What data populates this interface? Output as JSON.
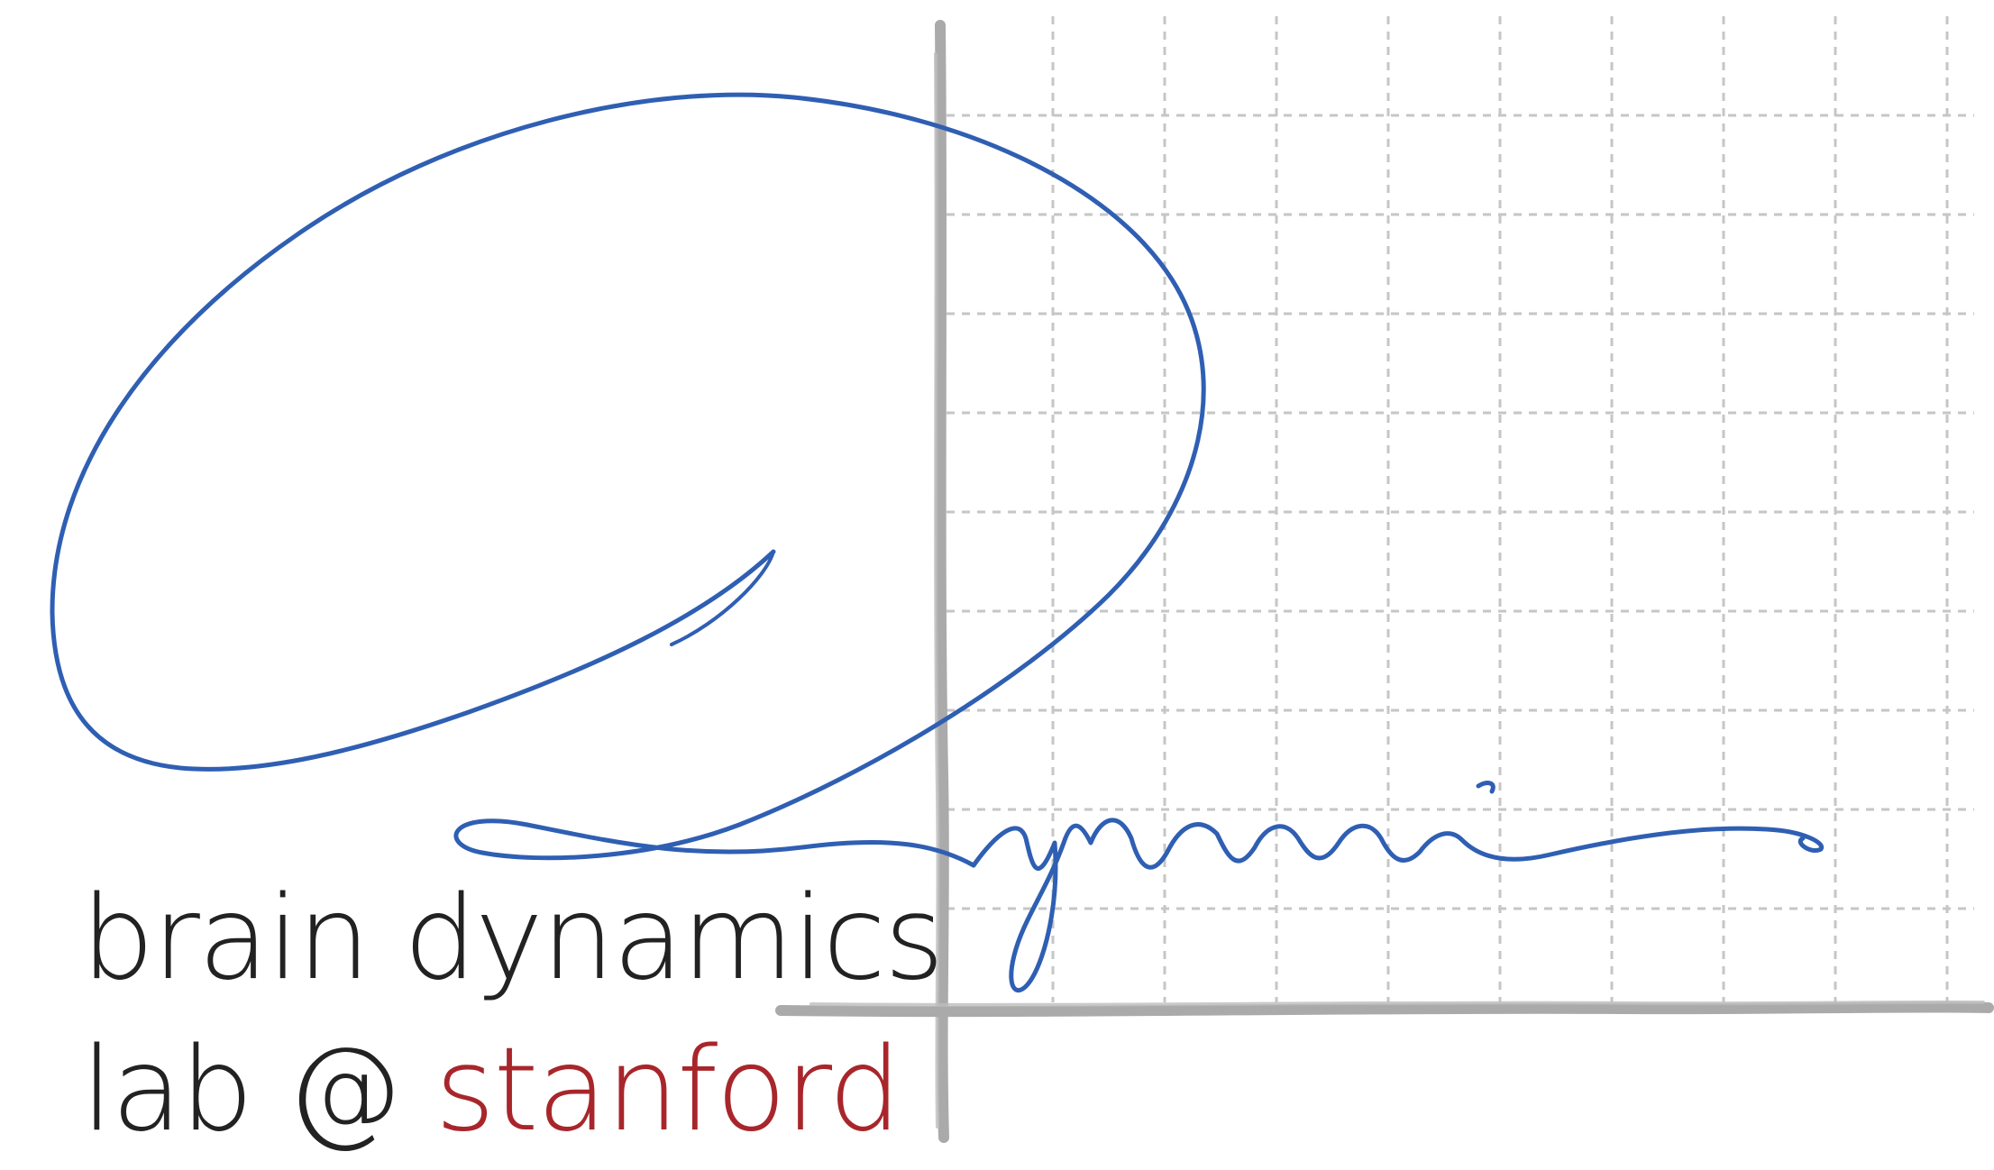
{
  "logo": {
    "line1": "brain dynamics",
    "line2_prefix": "lab @ ",
    "line2_accent": "stanford"
  },
  "colors": {
    "text": "#222222",
    "accent": "#a8262b",
    "script_ink": "#2f5fb3",
    "grid_dash": "#c6c6c6",
    "axis": "#a9aaa9"
  },
  "artwork": {
    "grid": "dashed-grid",
    "axes": "hand-drawn-axes",
    "signature": "cursive-dynamics-signature"
  }
}
